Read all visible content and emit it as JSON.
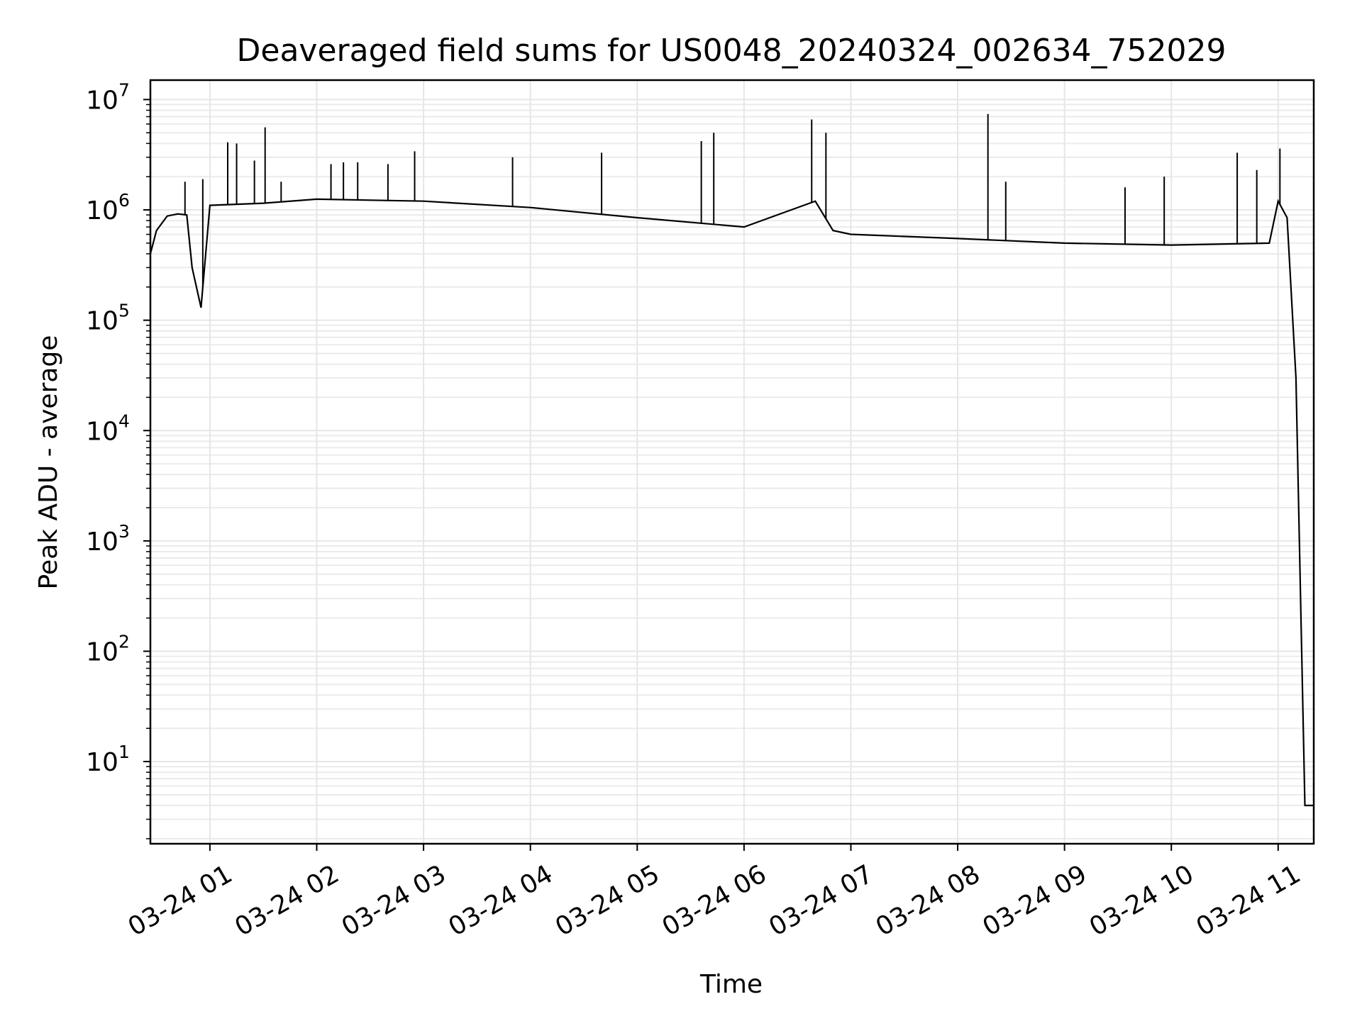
{
  "chart_data": {
    "type": "line",
    "title": "Deaveraged field sums for US0048_20240324_002634_752029",
    "xlabel": "Time",
    "ylabel": "Peak ADU - average",
    "yscale": "log",
    "ylim": [
      1.8,
      15000000
    ],
    "xlim": [
      "2024-03-24 00:26:34",
      "2024-03-24 11:20:00"
    ],
    "grid": "major and minor",
    "line_color": "#000000",
    "x_ticks": [
      {
        "value": "2024-03-24 01:00",
        "label": "03-24 01"
      },
      {
        "value": "2024-03-24 02:00",
        "label": "03-24 02"
      },
      {
        "value": "2024-03-24 03:00",
        "label": "03-24 03"
      },
      {
        "value": "2024-03-24 04:00",
        "label": "03-24 04"
      },
      {
        "value": "2024-03-24 05:00",
        "label": "03-24 05"
      },
      {
        "value": "2024-03-24 06:00",
        "label": "03-24 06"
      },
      {
        "value": "2024-03-24 07:00",
        "label": "03-24 07"
      },
      {
        "value": "2024-03-24 08:00",
        "label": "03-24 08"
      },
      {
        "value": "2024-03-24 09:00",
        "label": "03-24 09"
      },
      {
        "value": "2024-03-24 10:00",
        "label": "03-24 10"
      },
      {
        "value": "2024-03-24 11:00",
        "label": "03-24 11"
      }
    ],
    "y_ticks": [
      {
        "value": 10,
        "base": "10",
        "exp": "1"
      },
      {
        "value": 100,
        "base": "10",
        "exp": "2"
      },
      {
        "value": 1000,
        "base": "10",
        "exp": "3"
      },
      {
        "value": 10000,
        "base": "10",
        "exp": "4"
      },
      {
        "value": 100000,
        "base": "10",
        "exp": "5"
      },
      {
        "value": 1000000,
        "base": "10",
        "exp": "6"
      },
      {
        "value": 10000000,
        "base": "10",
        "exp": "7"
      }
    ],
    "series": [
      {
        "points": [
          [
            "2024-03-24 00:26:34",
            400000
          ],
          [
            "2024-03-24 00:30",
            650000
          ],
          [
            "2024-03-24 00:36",
            880000
          ],
          [
            "2024-03-24 00:42",
            920000
          ],
          [
            "2024-03-24 00:47",
            900000
          ],
          [
            "2024-03-24 00:50",
            300000
          ],
          [
            "2024-03-24 00:55",
            130000
          ],
          [
            "2024-03-24 01:00",
            1100000
          ],
          [
            "2024-03-24 01:30",
            1150000
          ],
          [
            "2024-03-24 02:00",
            1250000
          ],
          [
            "2024-03-24 03:00",
            1200000
          ],
          [
            "2024-03-24 04:00",
            1050000
          ],
          [
            "2024-03-24 05:00",
            850000
          ],
          [
            "2024-03-24 06:00",
            700000
          ],
          [
            "2024-03-24 06:40",
            1200000
          ],
          [
            "2024-03-24 06:50",
            650000
          ],
          [
            "2024-03-24 07:00",
            600000
          ],
          [
            "2024-03-24 08:00",
            550000
          ],
          [
            "2024-03-24 09:00",
            500000
          ],
          [
            "2024-03-24 10:00",
            480000
          ],
          [
            "2024-03-24 10:55",
            500000
          ],
          [
            "2024-03-24 11:00",
            1200000
          ],
          [
            "2024-03-24 11:05",
            850000
          ],
          [
            "2024-03-24 11:10",
            30000
          ],
          [
            "2024-03-24 11:15",
            4
          ],
          [
            "2024-03-24 11:20:00",
            4
          ]
        ]
      }
    ],
    "spikes": [
      [
        "2024-03-24 00:46",
        1800000
      ],
      [
        "2024-03-24 00:56",
        1900000
      ],
      [
        "2024-03-24 01:10",
        4100000
      ],
      [
        "2024-03-24 01:15",
        4000000
      ],
      [
        "2024-03-24 01:25",
        2800000
      ],
      [
        "2024-03-24 01:31",
        5600000
      ],
      [
        "2024-03-24 01:40",
        1800000
      ],
      [
        "2024-03-24 02:08",
        2600000
      ],
      [
        "2024-03-24 02:15",
        2700000
      ],
      [
        "2024-03-24 02:23",
        2700000
      ],
      [
        "2024-03-24 02:40",
        2600000
      ],
      [
        "2024-03-24 02:55",
        3400000
      ],
      [
        "2024-03-24 03:50",
        3000000
      ],
      [
        "2024-03-24 04:40",
        3300000
      ],
      [
        "2024-03-24 05:36",
        4200000
      ],
      [
        "2024-03-24 05:43",
        5000000
      ],
      [
        "2024-03-24 06:38",
        6600000
      ],
      [
        "2024-03-24 06:46",
        5000000
      ],
      [
        "2024-03-24 08:17",
        7400000
      ],
      [
        "2024-03-24 08:27",
        1800000
      ],
      [
        "2024-03-24 09:34",
        1600000
      ],
      [
        "2024-03-24 09:56",
        2000000
      ],
      [
        "2024-03-24 10:37",
        3300000
      ],
      [
        "2024-03-24 10:48",
        2300000
      ],
      [
        "2024-03-24 11:01",
        3600000
      ]
    ]
  }
}
